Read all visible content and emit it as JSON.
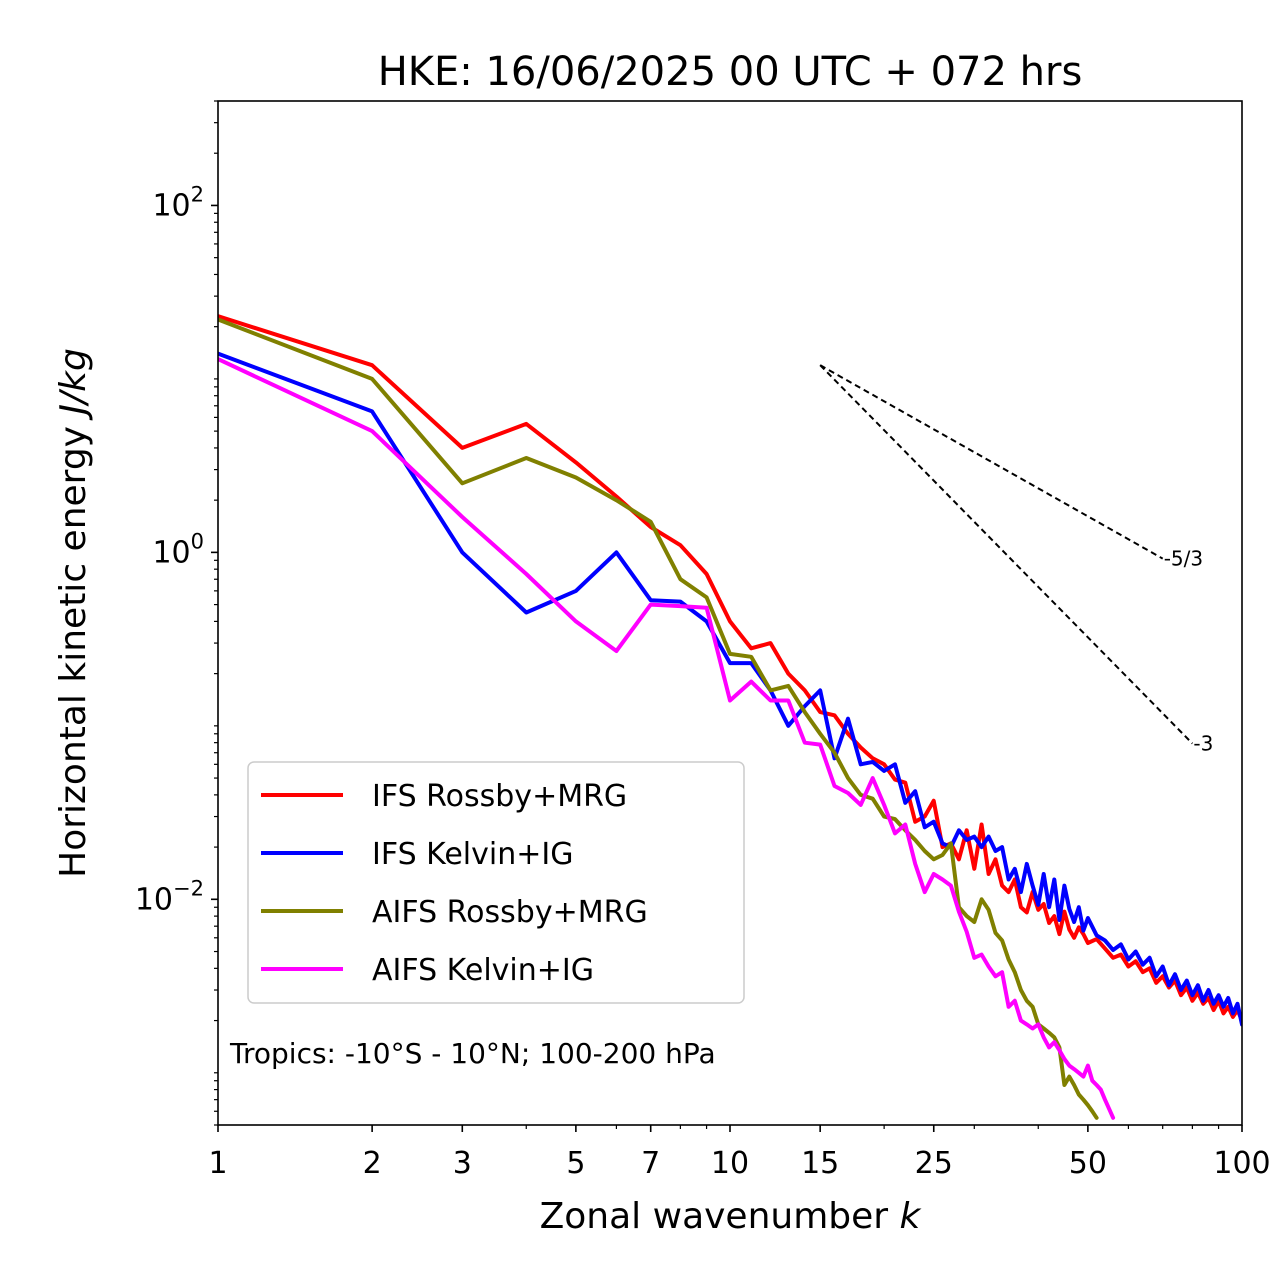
{
  "chart_data": {
    "type": "line",
    "title": "HKE: 16/06/2025 00 UTC + 072 hrs",
    "xlabel_text": "Zonal wavenumber ",
    "xlabel_italic": "k",
    "ylabel_text": "Horizontal kinetic energy ",
    "ylabel_italic": "J/kg",
    "x_scale": "log",
    "y_scale": "log",
    "xlim": [
      1,
      100
    ],
    "ylim": [
      0.0005,
      400
    ],
    "x_ticks": [
      {
        "value": 1,
        "label": "1"
      },
      {
        "value": 2,
        "label": "2"
      },
      {
        "value": 3,
        "label": "3"
      },
      {
        "value": 5,
        "label": "5"
      },
      {
        "value": 7,
        "label": "7"
      },
      {
        "value": 10,
        "label": "10"
      },
      {
        "value": 15,
        "label": "15"
      },
      {
        "value": 25,
        "label": "25"
      },
      {
        "value": 50,
        "label": "50"
      },
      {
        "value": 100,
        "label": "100"
      }
    ],
    "y_ticks": [
      {
        "value": 100,
        "base": "10",
        "exp": "2"
      },
      {
        "value": 1,
        "base": "10",
        "exp": "0"
      },
      {
        "value": 0.01,
        "base": "10",
        "exp": "−2"
      }
    ],
    "annotation": "Tropics: -10°S - 10°N; 100-200 hPa",
    "legend_position": "lower-left",
    "grid": false,
    "reference_lines": [
      {
        "label": "-5/3",
        "slope": -1.6667,
        "x": [
          15,
          70
        ],
        "y0": 12
      },
      {
        "label": "-3",
        "slope": -3,
        "x": [
          15,
          80
        ],
        "y0": 12
      }
    ],
    "series": [
      {
        "name": "IFS Rossby+MRG",
        "color": "#ff0000",
        "points": [
          [
            1,
            23.0
          ],
          [
            2,
            12.0
          ],
          [
            3,
            4.0
          ],
          [
            4,
            5.5
          ],
          [
            5,
            3.3
          ],
          [
            6,
            2.1
          ],
          [
            7,
            1.4
          ],
          [
            8,
            1.1
          ],
          [
            9,
            0.75
          ],
          [
            10,
            0.4
          ],
          [
            11,
            0.28
          ],
          [
            12,
            0.3
          ],
          [
            13,
            0.2
          ],
          [
            14,
            0.16
          ],
          [
            15,
            0.12
          ],
          [
            16,
            0.115
          ],
          [
            17,
            0.09
          ],
          [
            18,
            0.075
          ],
          [
            19,
            0.065
          ],
          [
            20,
            0.06
          ],
          [
            21,
            0.049
          ],
          [
            22,
            0.047
          ],
          [
            23,
            0.028
          ],
          [
            24,
            0.03
          ],
          [
            25,
            0.037
          ],
          [
            26,
            0.02
          ],
          [
            27,
            0.021
          ],
          [
            28,
            0.017
          ],
          [
            29,
            0.025
          ],
          [
            30,
            0.015
          ],
          [
            31,
            0.027
          ],
          [
            32,
            0.014
          ],
          [
            33,
            0.017
          ],
          [
            34,
            0.012
          ],
          [
            35,
            0.011
          ],
          [
            36,
            0.013
          ],
          [
            37,
            0.009
          ],
          [
            38,
            0.0084
          ],
          [
            39,
            0.011
          ],
          [
            40,
            0.0087
          ],
          [
            41,
            0.0094
          ],
          [
            42,
            0.0073
          ],
          [
            43,
            0.008
          ],
          [
            44,
            0.0063
          ],
          [
            45,
            0.0085
          ],
          [
            46,
            0.0067
          ],
          [
            47,
            0.006
          ],
          [
            48,
            0.0069
          ],
          [
            49,
            0.0063
          ],
          [
            50,
            0.0056
          ],
          [
            52,
            0.0059
          ],
          [
            54,
            0.0052
          ],
          [
            56,
            0.0046
          ],
          [
            58,
            0.0048
          ],
          [
            60,
            0.0041
          ],
          [
            62,
            0.0044
          ],
          [
            64,
            0.0038
          ],
          [
            66,
            0.004
          ],
          [
            68,
            0.0033
          ],
          [
            70,
            0.0036
          ],
          [
            72,
            0.0031
          ],
          [
            74,
            0.0034
          ],
          [
            76,
            0.0028
          ],
          [
            78,
            0.0031
          ],
          [
            80,
            0.0026
          ],
          [
            82,
            0.0029
          ],
          [
            84,
            0.0025
          ],
          [
            86,
            0.0027
          ],
          [
            88,
            0.0023
          ],
          [
            90,
            0.0026
          ],
          [
            92,
            0.0022
          ],
          [
            94,
            0.0024
          ],
          [
            96,
            0.0021
          ],
          [
            98,
            0.0023
          ],
          [
            100,
            0.002
          ]
        ]
      },
      {
        "name": "IFS Kelvin+IG",
        "color": "#0000ff",
        "points": [
          [
            1,
            14.0
          ],
          [
            2,
            6.5
          ],
          [
            3,
            1.0
          ],
          [
            4,
            0.45
          ],
          [
            5,
            0.6
          ],
          [
            6,
            1.0
          ],
          [
            7,
            0.53
          ],
          [
            8,
            0.52
          ],
          [
            9,
            0.4
          ],
          [
            10,
            0.23
          ],
          [
            11,
            0.23
          ],
          [
            12,
            0.16
          ],
          [
            13,
            0.1
          ],
          [
            14,
            0.13
          ],
          [
            15,
            0.16
          ],
          [
            16,
            0.065
          ],
          [
            17,
            0.11
          ],
          [
            18,
            0.06
          ],
          [
            19,
            0.062
          ],
          [
            20,
            0.055
          ],
          [
            21,
            0.06
          ],
          [
            22,
            0.036
          ],
          [
            23,
            0.042
          ],
          [
            24,
            0.026
          ],
          [
            25,
            0.028
          ],
          [
            26,
            0.021
          ],
          [
            27,
            0.02
          ],
          [
            28,
            0.025
          ],
          [
            29,
            0.022
          ],
          [
            30,
            0.023
          ],
          [
            31,
            0.02
          ],
          [
            32,
            0.023
          ],
          [
            33,
            0.019
          ],
          [
            34,
            0.02
          ],
          [
            35,
            0.013
          ],
          [
            36,
            0.015
          ],
          [
            37,
            0.011
          ],
          [
            38,
            0.016
          ],
          [
            39,
            0.012
          ],
          [
            40,
            0.0093
          ],
          [
            41,
            0.014
          ],
          [
            42,
            0.009
          ],
          [
            43,
            0.013
          ],
          [
            44,
            0.0076
          ],
          [
            45,
            0.012
          ],
          [
            46,
            0.0088
          ],
          [
            47,
            0.0074
          ],
          [
            48,
            0.009
          ],
          [
            49,
            0.0066
          ],
          [
            50,
            0.0078
          ],
          [
            52,
            0.0062
          ],
          [
            54,
            0.0058
          ],
          [
            56,
            0.0051
          ],
          [
            58,
            0.0055
          ],
          [
            60,
            0.0045
          ],
          [
            62,
            0.005
          ],
          [
            64,
            0.0042
          ],
          [
            66,
            0.0046
          ],
          [
            68,
            0.0036
          ],
          [
            70,
            0.0041
          ],
          [
            72,
            0.0032
          ],
          [
            74,
            0.0037
          ],
          [
            76,
            0.003
          ],
          [
            78,
            0.0034
          ],
          [
            80,
            0.0028
          ],
          [
            82,
            0.0032
          ],
          [
            84,
            0.0026
          ],
          [
            86,
            0.003
          ],
          [
            88,
            0.0025
          ],
          [
            90,
            0.0028
          ],
          [
            92,
            0.0024
          ],
          [
            94,
            0.0027
          ],
          [
            96,
            0.0022
          ],
          [
            98,
            0.0025
          ],
          [
            100,
            0.0019
          ]
        ]
      },
      {
        "name": "AIFS Rossby+MRG",
        "color": "#808000",
        "points": [
          [
            1,
            22.0
          ],
          [
            2,
            10.0
          ],
          [
            3,
            2.5
          ],
          [
            4,
            3.5
          ],
          [
            5,
            2.7
          ],
          [
            6,
            2.0
          ],
          [
            7,
            1.5
          ],
          [
            8,
            0.7
          ],
          [
            9,
            0.55
          ],
          [
            10,
            0.26
          ],
          [
            11,
            0.25
          ],
          [
            12,
            0.16
          ],
          [
            13,
            0.17
          ],
          [
            14,
            0.12
          ],
          [
            15,
            0.09
          ],
          [
            16,
            0.07
          ],
          [
            17,
            0.05
          ],
          [
            18,
            0.04
          ],
          [
            19,
            0.038
          ],
          [
            20,
            0.03
          ],
          [
            21,
            0.029
          ],
          [
            22,
            0.025
          ],
          [
            23,
            0.022
          ],
          [
            24,
            0.019
          ],
          [
            25,
            0.017
          ],
          [
            26,
            0.018
          ],
          [
            27,
            0.021
          ],
          [
            28,
            0.009
          ],
          [
            29,
            0.008
          ],
          [
            30,
            0.0074
          ],
          [
            31,
            0.01
          ],
          [
            32,
            0.0087
          ],
          [
            33,
            0.0064
          ],
          [
            34,
            0.0058
          ],
          [
            35,
            0.0045
          ],
          [
            36,
            0.0038
          ],
          [
            37,
            0.003
          ],
          [
            38,
            0.0026
          ],
          [
            39,
            0.0024
          ],
          [
            40,
            0.0019
          ],
          [
            41,
            0.0018
          ],
          [
            42,
            0.0017
          ],
          [
            43,
            0.0016
          ],
          [
            44,
            0.0014
          ],
          [
            45,
            0.00085
          ],
          [
            46,
            0.00095
          ],
          [
            47,
            0.00085
          ],
          [
            48,
            0.00075
          ],
          [
            49,
            0.0007
          ],
          [
            50,
            0.00065
          ],
          [
            51,
            0.0006
          ],
          [
            52,
            0.00055
          ]
        ]
      },
      {
        "name": "AIFS Kelvin+IG",
        "color": "#ff00ff",
        "points": [
          [
            1,
            13.0
          ],
          [
            2,
            5.0
          ],
          [
            3,
            1.6
          ],
          [
            4,
            0.75
          ],
          [
            5,
            0.4
          ],
          [
            6,
            0.27
          ],
          [
            7,
            0.5
          ],
          [
            8,
            0.49
          ],
          [
            9,
            0.48
          ],
          [
            10,
            0.14
          ],
          [
            11,
            0.18
          ],
          [
            12,
            0.14
          ],
          [
            13,
            0.14
          ],
          [
            14,
            0.08
          ],
          [
            15,
            0.078
          ],
          [
            16,
            0.045
          ],
          [
            17,
            0.041
          ],
          [
            18,
            0.035
          ],
          [
            19,
            0.05
          ],
          [
            20,
            0.035
          ],
          [
            21,
            0.024
          ],
          [
            22,
            0.027
          ],
          [
            23,
            0.016
          ],
          [
            24,
            0.011
          ],
          [
            25,
            0.014
          ],
          [
            26,
            0.013
          ],
          [
            27,
            0.012
          ],
          [
            28,
            0.0085
          ],
          [
            29,
            0.0065
          ],
          [
            30,
            0.0046
          ],
          [
            31,
            0.0048
          ],
          [
            32,
            0.0041
          ],
          [
            33,
            0.0036
          ],
          [
            34,
            0.0038
          ],
          [
            35,
            0.0024
          ],
          [
            36,
            0.0026
          ],
          [
            37,
            0.002
          ],
          [
            38,
            0.0019
          ],
          [
            39,
            0.0018
          ],
          [
            40,
            0.0019
          ],
          [
            41,
            0.0016
          ],
          [
            42,
            0.0014
          ],
          [
            43,
            0.0015
          ],
          [
            44,
            0.00135
          ],
          [
            45,
            0.0012
          ],
          [
            46,
            0.0011
          ],
          [
            47,
            0.00105
          ],
          [
            48,
            0.001
          ],
          [
            49,
            0.00095
          ],
          [
            50,
            0.0011
          ],
          [
            51,
            0.0009
          ],
          [
            52,
            0.00085
          ],
          [
            53,
            0.0008
          ],
          [
            54,
            0.0007
          ],
          [
            55,
            0.00062
          ],
          [
            56,
            0.00055
          ]
        ]
      }
    ]
  }
}
